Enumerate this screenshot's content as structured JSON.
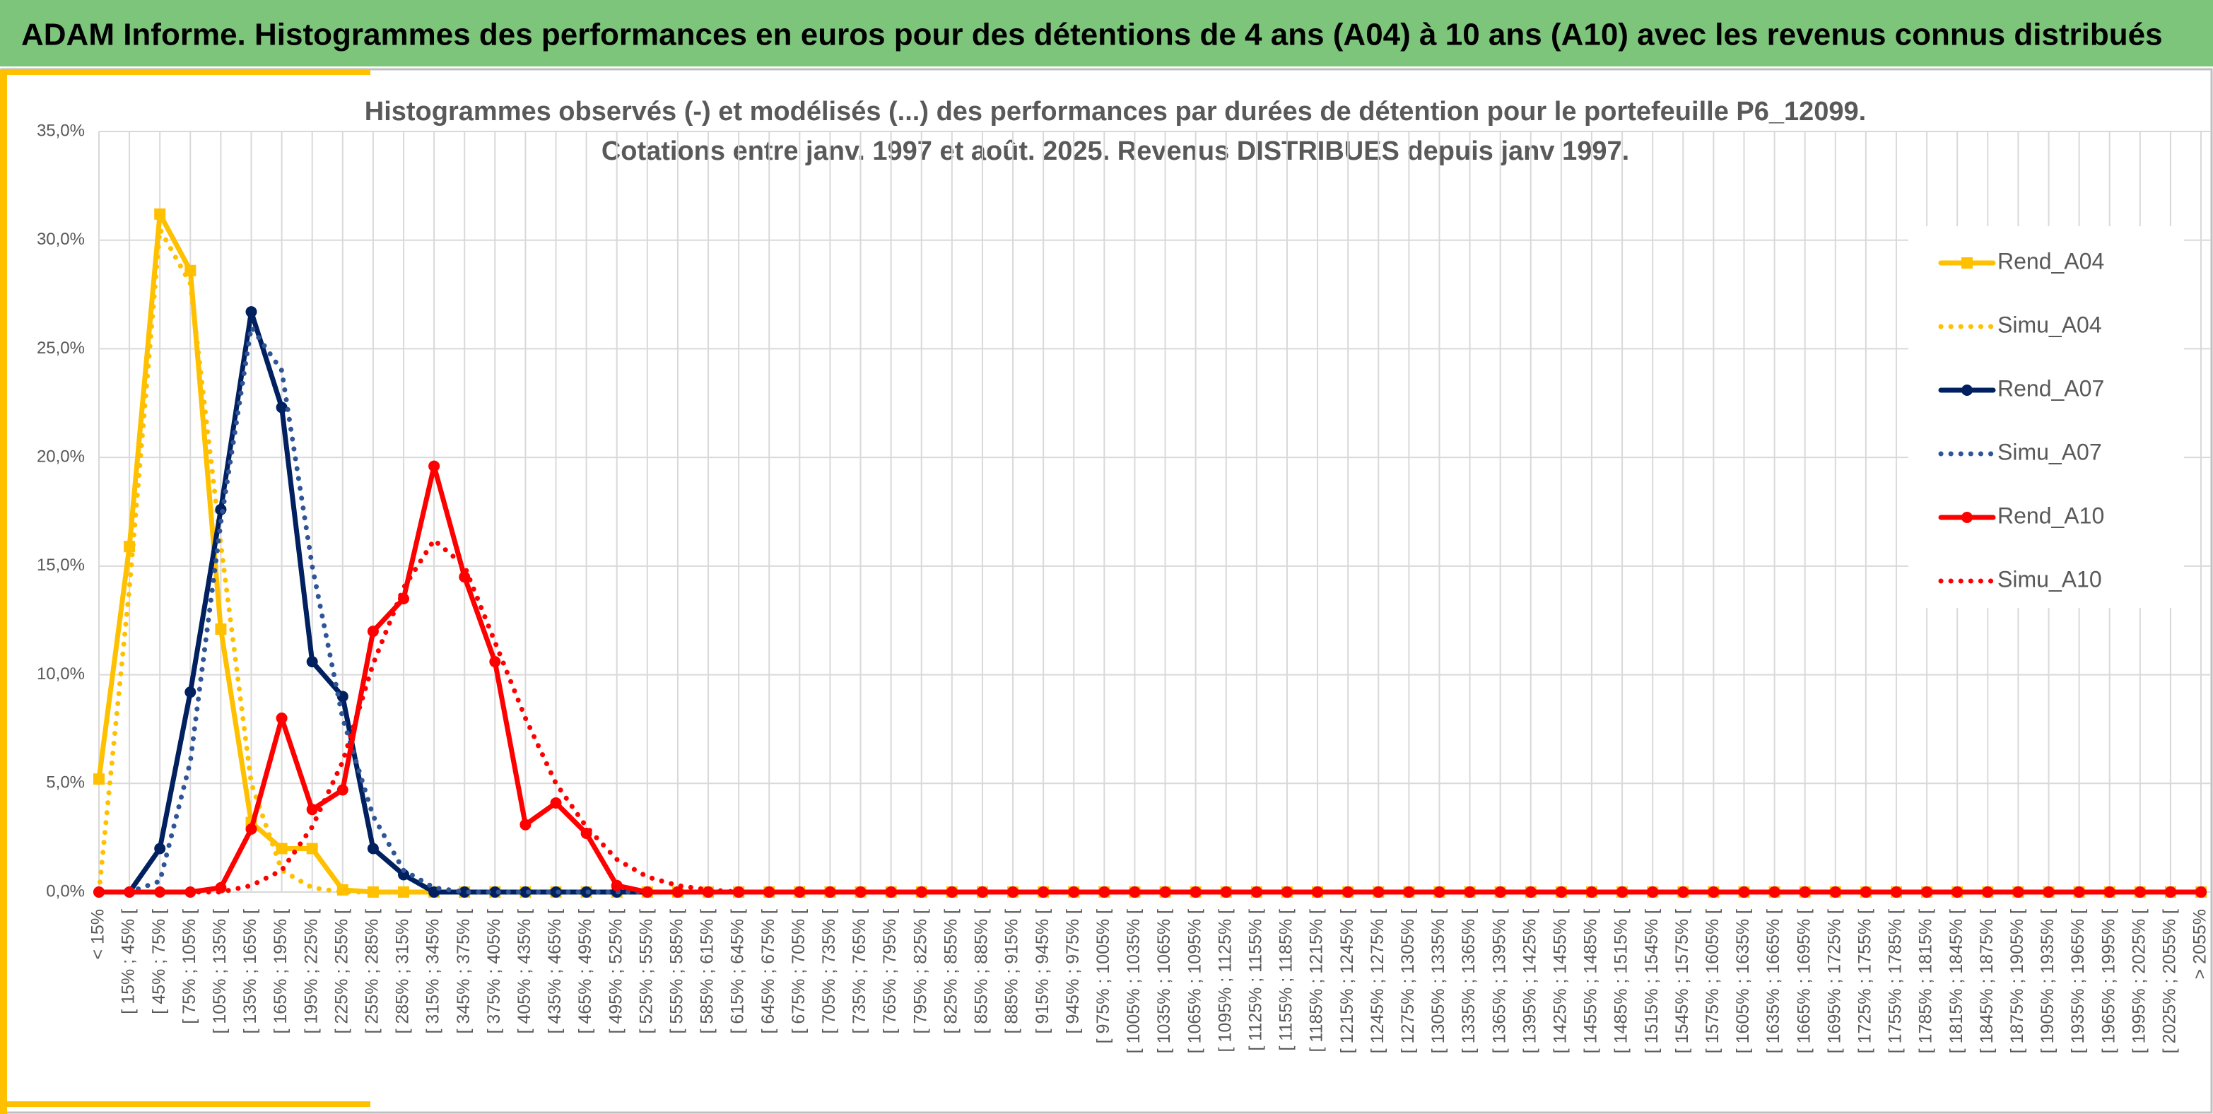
{
  "header": {
    "title": "ADAM Informe. Histogrammes des performances en euros pour des détentions de 4 ans (A04) à 10 ans (A10) avec les revenus connus distribués"
  },
  "chart_data": {
    "type": "line",
    "title": "Histogrammes observés (-) et modélisés (...) des performances par durées de détention pour le portefeuille P6_12099.",
    "subtitle": "Cotations entre janv. 1997 et août. 2025. Revenus DISTRIBUES depuis janv 1997.",
    "categories": [
      "< 15%",
      "[ 15% ; 45% [",
      "[ 45% ; 75% [",
      "[ 75% ; 105% [",
      "[ 105% ; 135% [",
      "[ 135% ; 165% [",
      "[ 165% ; 195% [",
      "[ 195% ; 225% [",
      "[ 225% ; 255% [",
      "[ 255% ; 285% [",
      "[ 285% ; 315% [",
      "[ 315% ; 345% [",
      "[ 345% ; 375% [",
      "[ 375% ; 405% [",
      "[ 405% ; 435% [",
      "[ 435% ; 465% [",
      "[ 465% ; 495% [",
      "[ 495% ; 525% [",
      "[ 525% ; 555% [",
      "[ 555% ; 585% [",
      "[ 585% ; 615% [",
      "[ 615% ; 645% [",
      "[ 645% ; 675% [",
      "[ 675% ; 705% [",
      "[ 705% ; 735% [",
      "[ 735% ; 765% [",
      "[ 765% ; 795% [",
      "[ 795% ; 825% [",
      "[ 825% ; 855% [",
      "[ 855% ; 885% [",
      "[ 885% ; 915% [",
      "[ 915% ; 945% [",
      "[ 945% ; 975% [",
      "[ 975% ; 1005% [",
      "[ 1005% ; 1035% [",
      "[ 1035% ; 1065% [",
      "[ 1065% ; 1095% [",
      "[ 1095% ; 1125% [",
      "[ 1125% ; 1155% [",
      "[ 1155% ; 1185% [",
      "[ 1185% ; 1215% [",
      "[ 1215% ; 1245% [",
      "[ 1245% ; 1275% [",
      "[ 1275% ; 1305% [",
      "[ 1305% ; 1335% [",
      "[ 1335% ; 1365% [",
      "[ 1365% ; 1395% [",
      "[ 1395% ; 1425% [",
      "[ 1425% ; 1455% [",
      "[ 1455% ; 1485% [",
      "[ 1485% ; 1515% [",
      "[ 1515% ; 1545% [",
      "[ 1545% ; 1575% [",
      "[ 1575% ; 1605% [",
      "[ 1605% ; 1635% [",
      "[ 1635% ; 1665% [",
      "[ 1665% ; 1695% [",
      "[ 1695% ; 1725% [",
      "[ 1725% ; 1755% [",
      "[ 1755% ; 1785% [",
      "[ 1785% ; 1815% [",
      "[ 1815% ; 1845% [",
      "[ 1845% ; 1875% [",
      "[ 1875% ; 1905% [",
      "[ 1905% ; 1935% [",
      "[ 1935% ; 1965% [",
      "[ 1965% ; 1995% [",
      "[ 1995% ; 2025% [",
      "[ 2025% ; 2055% [",
      "> 2055%"
    ],
    "series": [
      {
        "name": "Rend_A04",
        "color": "#FFC000",
        "style": "solid",
        "marker": "square",
        "values": [
          5.2,
          15.9,
          31.2,
          28.6,
          12.1,
          3.2,
          2.0,
          2.0,
          0.1,
          0,
          0,
          0,
          0,
          0,
          0,
          0,
          0,
          0,
          0,
          0,
          0,
          0,
          0,
          0,
          0,
          0,
          0,
          0,
          0,
          0,
          0,
          0,
          0,
          0,
          0,
          0,
          0,
          0,
          0,
          0,
          0,
          0,
          0,
          0,
          0,
          0,
          0,
          0,
          0,
          0,
          0,
          0,
          0,
          0,
          0,
          0,
          0,
          0,
          0,
          0,
          0,
          0,
          0,
          0,
          0,
          0,
          0,
          0,
          0,
          0
        ]
      },
      {
        "name": "Simu_A04",
        "color": "#FFC000",
        "style": "dotted",
        "values": [
          0,
          14,
          30.5,
          28,
          16,
          5,
          1,
          0.2,
          0,
          0,
          0,
          0,
          0,
          0,
          0,
          0,
          0,
          0,
          0,
          0,
          0,
          0,
          0,
          0,
          0,
          0,
          0,
          0,
          0,
          0,
          0,
          0,
          0,
          0,
          0,
          0,
          0,
          0,
          0,
          0,
          0,
          0,
          0,
          0,
          0,
          0,
          0,
          0,
          0,
          0,
          0,
          0,
          0,
          0,
          0,
          0,
          0,
          0,
          0,
          0,
          0,
          0,
          0,
          0,
          0,
          0,
          0,
          0,
          0,
          0
        ]
      },
      {
        "name": "Rend_A07",
        "color": "#002060",
        "style": "solid",
        "marker": "circle",
        "values": [
          0,
          0,
          2.0,
          9.2,
          17.6,
          26.7,
          22.3,
          10.6,
          9.0,
          2.0,
          0.8,
          0,
          0,
          0,
          0,
          0,
          0,
          0,
          0,
          0,
          0,
          0,
          0,
          0,
          0,
          0,
          0,
          0,
          0,
          0,
          0,
          0,
          0,
          0,
          0,
          0,
          0,
          0,
          0,
          0,
          0,
          0,
          0,
          0,
          0,
          0,
          0,
          0,
          0,
          0,
          0,
          0,
          0,
          0,
          0,
          0,
          0,
          0,
          0,
          0,
          0,
          0,
          0,
          0,
          0,
          0,
          0,
          0,
          0,
          0
        ]
      },
      {
        "name": "Simu_A07",
        "color": "#2F5597",
        "style": "dotted",
        "values": [
          0,
          0,
          0.5,
          6,
          17,
          26,
          24,
          15,
          8,
          3.5,
          1,
          0.2,
          0,
          0,
          0,
          0,
          0,
          0,
          0,
          0,
          0,
          0,
          0,
          0,
          0,
          0,
          0,
          0,
          0,
          0,
          0,
          0,
          0,
          0,
          0,
          0,
          0,
          0,
          0,
          0,
          0,
          0,
          0,
          0,
          0,
          0,
          0,
          0,
          0,
          0,
          0,
          0,
          0,
          0,
          0,
          0,
          0,
          0,
          0,
          0,
          0,
          0,
          0,
          0,
          0,
          0,
          0,
          0,
          0,
          0
        ]
      },
      {
        "name": "Rend_A10",
        "color": "#FF0000",
        "style": "solid",
        "marker": "circle",
        "values": [
          0,
          0,
          0,
          0,
          0.2,
          2.9,
          8.0,
          3.8,
          4.7,
          12.0,
          13.5,
          19.6,
          14.5,
          10.6,
          3.1,
          4.1,
          2.7,
          0.3,
          0,
          0,
          0,
          0,
          0,
          0,
          0,
          0,
          0,
          0,
          0,
          0,
          0,
          0,
          0,
          0,
          0,
          0,
          0,
          0,
          0,
          0,
          0,
          0,
          0,
          0,
          0,
          0,
          0,
          0,
          0,
          0,
          0,
          0,
          0,
          0,
          0,
          0,
          0,
          0,
          0,
          0,
          0,
          0,
          0,
          0,
          0,
          0,
          0,
          0,
          0,
          0
        ]
      },
      {
        "name": "Simu_A10",
        "color": "#FF0000",
        "style": "dotted",
        "values": [
          0,
          0,
          0,
          0,
          0,
          0.3,
          1.0,
          3,
          6,
          10.5,
          14,
          16.2,
          15,
          11.5,
          8,
          5,
          3,
          1.5,
          0.7,
          0.3,
          0.1,
          0,
          0,
          0,
          0,
          0,
          0,
          0,
          0,
          0,
          0,
          0,
          0,
          0,
          0,
          0,
          0,
          0,
          0,
          0,
          0,
          0,
          0,
          0,
          0,
          0,
          0,
          0,
          0,
          0,
          0,
          0,
          0,
          0,
          0,
          0,
          0,
          0,
          0,
          0,
          0,
          0,
          0,
          0,
          0,
          0,
          0,
          0,
          0,
          0
        ]
      }
    ],
    "ylim": [
      0,
      35
    ],
    "yticks": [
      {
        "value": 0,
        "label": "0,0%"
      },
      {
        "value": 5,
        "label": "5,0%"
      },
      {
        "value": 10,
        "label": "10,0%"
      },
      {
        "value": 15,
        "label": "15,0%"
      },
      {
        "value": 20,
        "label": "20,0%"
      },
      {
        "value": 25,
        "label": "25,0%"
      },
      {
        "value": 30,
        "label": "30,0%"
      },
      {
        "value": 35,
        "label": "35,0%"
      }
    ],
    "grid": true,
    "legend": "right"
  }
}
